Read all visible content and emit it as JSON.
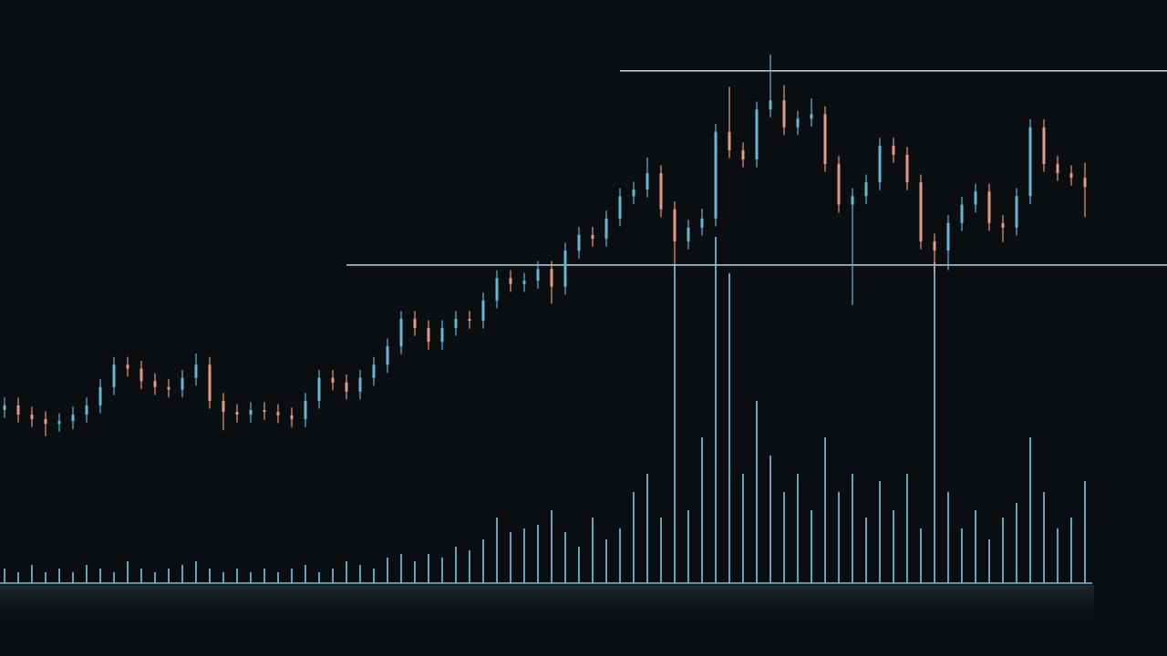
{
  "chart_data": {
    "type": "candlestick",
    "open": [
      37.5,
      38.2,
      36.8,
      36.1,
      35.4,
      35.8,
      36.8,
      38.2,
      41.0,
      44.4,
      43.8,
      41.9,
      41.0,
      40.6,
      42.4,
      44.4,
      38.9,
      37.2,
      36.8,
      37.5,
      37.2,
      36.7,
      36.1,
      38.9,
      42.4,
      41.7,
      40.3,
      42.4,
      44.4,
      47.2,
      51.4,
      50.0,
      47.9,
      50.0,
      51.4,
      51.1,
      54.2,
      57.6,
      56.7,
      57.2,
      59.0,
      56.3,
      61.8,
      64.2,
      63.6,
      66.7,
      70.1,
      71.1,
      73.6,
      68.1,
      63.2,
      65.3,
      66.7,
      79.9,
      77.1,
      75.7,
      83.3,
      84.7,
      80.6,
      81.9,
      82.6,
      75.0,
      68.8,
      70.1,
      72.2,
      77.8,
      76.4,
      72.2,
      63.2,
      61.8,
      66.0,
      68.8,
      70.8,
      66.0,
      65.3,
      70.1,
      80.6,
      75.0,
      73.6,
      72.9
    ],
    "high": [
      39.4,
      39.4,
      38.0,
      37.3,
      37.0,
      38.0,
      39.4,
      42.2,
      45.6,
      45.6,
      45.0,
      43.1,
      42.2,
      43.6,
      46.1,
      45.6,
      40.1,
      38.4,
      38.7,
      38.7,
      38.4,
      37.9,
      40.1,
      43.6,
      43.6,
      42.9,
      43.6,
      45.6,
      48.4,
      52.6,
      52.6,
      51.2,
      51.2,
      52.6,
      52.6,
      55.4,
      58.8,
      58.8,
      58.4,
      60.2,
      60.2,
      63.0,
      65.4,
      65.4,
      67.9,
      71.3,
      72.3,
      76.0,
      74.8,
      69.3,
      66.5,
      68.2,
      81.1,
      86.8,
      78.3,
      84.5,
      91.7,
      87.0,
      83.1,
      85.0,
      83.8,
      76.2,
      71.3,
      73.4,
      79.0,
      79.0,
      77.6,
      73.4,
      64.4,
      67.2,
      70.0,
      72.0,
      72.0,
      67.2,
      71.3,
      81.8,
      81.8,
      76.2,
      74.8,
      75.2
    ],
    "low": [
      36.3,
      35.6,
      34.9,
      33.5,
      34.2,
      34.6,
      35.6,
      37.0,
      39.8,
      42.6,
      40.7,
      39.8,
      39.4,
      39.4,
      41.2,
      37.7,
      34.4,
      35.6,
      35.6,
      36.0,
      35.5,
      34.9,
      34.9,
      37.7,
      40.5,
      39.1,
      39.1,
      41.2,
      43.2,
      46.0,
      48.8,
      46.7,
      46.7,
      48.8,
      49.9,
      49.9,
      53.0,
      55.5,
      55.5,
      56.0,
      53.7,
      55.1,
      60.6,
      62.4,
      62.4,
      65.5,
      68.9,
      69.9,
      66.9,
      59.7,
      62.0,
      64.1,
      65.5,
      75.9,
      74.5,
      74.5,
      82.1,
      79.4,
      79.4,
      80.7,
      73.8,
      67.6,
      53.5,
      68.9,
      71.0,
      75.2,
      71.0,
      62.0,
      58.3,
      58.8,
      64.8,
      67.6,
      64.8,
      63.1,
      64.1,
      68.9,
      73.8,
      72.4,
      71.7,
      66.9
    ],
    "close": [
      38.2,
      36.8,
      36.1,
      35.4,
      35.8,
      36.8,
      38.2,
      41.0,
      44.4,
      43.8,
      41.9,
      41.0,
      40.6,
      42.4,
      44.4,
      38.9,
      37.2,
      36.8,
      37.5,
      37.2,
      36.7,
      36.1,
      38.9,
      42.4,
      41.7,
      40.3,
      42.4,
      44.4,
      47.2,
      51.4,
      50.0,
      47.9,
      50.0,
      51.4,
      51.1,
      54.2,
      57.6,
      56.7,
      57.2,
      59.0,
      56.3,
      61.8,
      64.2,
      63.6,
      66.7,
      70.1,
      71.1,
      73.6,
      68.1,
      63.2,
      65.3,
      66.7,
      79.9,
      77.1,
      75.7,
      83.3,
      84.7,
      80.6,
      81.9,
      82.6,
      75.0,
      68.8,
      70.1,
      72.2,
      77.8,
      76.4,
      72.2,
      63.2,
      61.8,
      66.0,
      68.8,
      70.8,
      66.0,
      65.3,
      70.1,
      80.6,
      75.0,
      73.6,
      72.9,
      71.5
    ],
    "volume": [
      4,
      3,
      5,
      3,
      4,
      3,
      5,
      4,
      3,
      6,
      4,
      3,
      4,
      5,
      6,
      4,
      3,
      4,
      3,
      4,
      3,
      4,
      5,
      3,
      4,
      6,
      5,
      4,
      7,
      8,
      6,
      8,
      7,
      10,
      9,
      12,
      18,
      14,
      15,
      16,
      20,
      14,
      10,
      18,
      12,
      15,
      25,
      30,
      18,
      87.5,
      20,
      40,
      95,
      85,
      30,
      50,
      35,
      25,
      30,
      20,
      40,
      25,
      30,
      18,
      28,
      20,
      30,
      15,
      88,
      25,
      15,
      20,
      12,
      18,
      22,
      40,
      25,
      15,
      18,
      28
    ],
    "levels": [
      {
        "value": 89.2,
        "start": 45
      },
      {
        "value": 59.6,
        "start": 25
      }
    ],
    "up_color": "#62b8d8",
    "down_color": "#e39a80",
    "volume_color": "#6fc0de",
    "level_color": "#b9d9df",
    "ylim": [
      0,
      100
    ],
    "y2lim": [
      0,
      100
    ]
  }
}
